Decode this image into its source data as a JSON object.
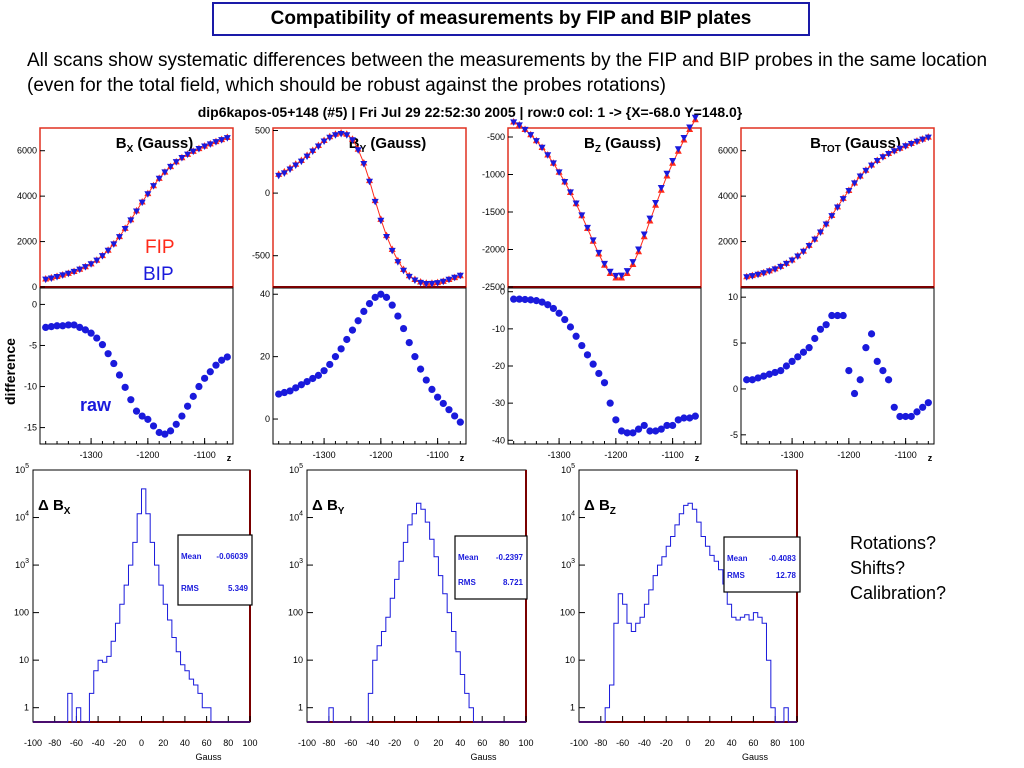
{
  "slide": {
    "title": "Compatibility of measurements by FIP and BIP plates",
    "intro": "All scans show systematic differences between the measurements by the FIP and BIP probes in the same location (even for the total field, which should be robust against the probes rotations)",
    "plot_header": "dip6kapos-05+148 (#5) | Fri Jul 29 22:52:30 2005 | row:0 col: 1 -> {X=-68.0 Y=148.0}",
    "questions": [
      "Rotations?",
      "Shifts?",
      "Calibration?"
    ]
  },
  "colors": {
    "fip": "#ff2a1a",
    "bip": "#1a1adc",
    "frame": "#7a0000",
    "title_border": "#1a1aa8",
    "hist": "#1a1adc"
  },
  "chart_data": [
    {
      "type": "line",
      "id": "bx",
      "title": "B",
      "title_sub": "X",
      "title_suffix": " (Gauss)",
      "x": [
        -1380,
        -1370,
        -1360,
        -1350,
        -1340,
        -1330,
        -1320,
        -1310,
        -1300,
        -1290,
        -1280,
        -1270,
        -1260,
        -1250,
        -1240,
        -1230,
        -1220,
        -1210,
        -1200,
        -1190,
        -1180,
        -1170,
        -1160,
        -1150,
        -1140,
        -1130,
        -1120,
        -1110,
        -1100,
        -1090,
        -1080,
        -1070,
        -1060
      ],
      "series": [
        {
          "name": "FIP",
          "values": [
            350,
            400,
            460,
            530,
            600,
            680,
            780,
            890,
            1020,
            1180,
            1380,
            1620,
            1900,
            2220,
            2580,
            2960,
            3350,
            3740,
            4110,
            4460,
            4780,
            5060,
            5300,
            5510,
            5690,
            5840,
            5970,
            6090,
            6200,
            6300,
            6400,
            6490,
            6580
          ]
        },
        {
          "name": "BIP",
          "values": [
            347,
            398,
            462,
            533,
            605,
            686,
            787,
            896,
            1024,
            1182,
            1379,
            1619,
            1898,
            2217,
            2576,
            2955,
            3345,
            3736,
            4108,
            4461,
            4786,
            5068,
            5310,
            5521,
            5703,
            5852,
            5980,
            6098,
            6205,
            6302,
            6400,
            6489,
            6576
          ]
        }
      ],
      "diff": [
        -2.8,
        -2.7,
        -2.6,
        -2.6,
        -2.5,
        -2.5,
        -2.8,
        -3.1,
        -3.5,
        -4.1,
        -4.9,
        -6.0,
        -7.2,
        -8.6,
        -10.1,
        -11.6,
        -13.0,
        -13.6,
        -14.0,
        -14.8,
        -15.6,
        -15.8,
        -15.4,
        -14.6,
        -13.6,
        -12.4,
        -11.2,
        -10.0,
        -9.0,
        -8.2,
        -7.4,
        -6.8,
        -6.4
      ],
      "ylim": [
        0,
        7000
      ],
      "yticks": [
        0,
        2000,
        4000,
        6000
      ],
      "dylim": [
        -17,
        2
      ],
      "dyticks": [
        -15,
        -10,
        -5,
        0
      ]
    },
    {
      "type": "line",
      "id": "by",
      "title": "B",
      "title_sub": "Y",
      "title_suffix": " (Gauss)",
      "x": [
        -1380,
        -1370,
        -1360,
        -1350,
        -1340,
        -1330,
        -1320,
        -1310,
        -1300,
        -1290,
        -1280,
        -1270,
        -1260,
        -1250,
        -1240,
        -1230,
        -1220,
        -1210,
        -1200,
        -1190,
        -1180,
        -1170,
        -1160,
        -1150,
        -1140,
        -1130,
        -1120,
        -1110,
        -1100,
        -1090,
        -1080,
        -1070,
        -1060
      ],
      "series": [
        {
          "name": "FIP",
          "values": [
            150,
            170,
            200,
            230,
            260,
            300,
            340,
            380,
            420,
            450,
            470,
            480,
            470,
            430,
            350,
            240,
            100,
            -60,
            -210,
            -340,
            -450,
            -540,
            -610,
            -660,
            -690,
            -710,
            -720,
            -720,
            -715,
            -705,
            -690,
            -675,
            -660
          ]
        },
        {
          "name": "BIP",
          "values": [
            142,
            162,
            193,
            224,
            255,
            295,
            336,
            376,
            416,
            446,
            466,
            476,
            466,
            426,
            346,
            236,
            95,
            -66,
            -217,
            -347,
            -457,
            -547,
            -616,
            -665,
            -694,
            -713,
            -722,
            -721,
            -715,
            -704,
            -688,
            -672,
            -656
          ]
        }
      ],
      "diff": [
        8.0,
        8.5,
        9.0,
        10.0,
        11.0,
        12.0,
        13.0,
        14.0,
        15.5,
        17.5,
        20.0,
        22.5,
        25.5,
        28.5,
        31.5,
        34.5,
        37.0,
        39.0,
        40.0,
        39.0,
        36.5,
        33.0,
        29.0,
        24.5,
        20.0,
        16.0,
        12.5,
        9.5,
        7.0,
        5.0,
        3.0,
        1.0,
        -1.0
      ],
      "ylim": [
        -750,
        520
      ],
      "yticks": [
        -500,
        0,
        500
      ],
      "dylim": [
        -8,
        42
      ],
      "dyticks": [
        0,
        20,
        40
      ]
    },
    {
      "type": "line",
      "id": "bz",
      "title": "B",
      "title_sub": "Z",
      "title_suffix": " (Gauss)",
      "x": [
        -1380,
        -1370,
        -1360,
        -1350,
        -1340,
        -1330,
        -1320,
        -1310,
        -1300,
        -1290,
        -1280,
        -1270,
        -1260,
        -1250,
        -1240,
        -1230,
        -1220,
        -1210,
        -1200,
        -1190,
        -1180,
        -1170,
        -1160,
        -1150,
        -1140,
        -1130,
        -1120,
        -1110,
        -1100,
        -1090,
        -1080,
        -1070,
        -1060
      ],
      "series": [
        {
          "name": "FIP",
          "values": [
            -300,
            -340,
            -400,
            -470,
            -550,
            -640,
            -740,
            -850,
            -970,
            -1100,
            -1240,
            -1390,
            -1550,
            -1720,
            -1890,
            -2060,
            -2210,
            -2320,
            -2380,
            -2380,
            -2320,
            -2200,
            -2030,
            -1830,
            -1620,
            -1410,
            -1210,
            -1020,
            -850,
            -690,
            -540,
            -400,
            -270
          ]
        },
        {
          "name": "BIP",
          "values": [
            -298,
            -338,
            -398,
            -468,
            -548,
            -637,
            -736,
            -845,
            -965,
            -1094,
            -1232,
            -1380,
            -1538,
            -1705,
            -1872,
            -2038,
            -2185,
            -2290,
            -2345,
            -2342,
            -2282,
            -2162,
            -1993,
            -1794,
            -1582,
            -1373,
            -1173,
            -984,
            -814,
            -656,
            -506,
            -366,
            -237
          ]
        }
      ],
      "diff": [
        -2.0,
        -2.0,
        -2.1,
        -2.2,
        -2.4,
        -2.8,
        -3.5,
        -4.5,
        -5.8,
        -7.5,
        -9.5,
        -12.0,
        -14.5,
        -17.0,
        -19.5,
        -22.0,
        -24.5,
        -30.0,
        -34.5,
        -37.5,
        -38.0,
        -38.0,
        -37.0,
        -36.0,
        -37.5,
        -37.5,
        -37.0,
        -36.0,
        -36.0,
        -34.5,
        -34.0,
        -34.0,
        -33.5
      ],
      "ylim": [
        -2500,
        -380
      ],
      "yticks": [
        -2500,
        -2000,
        -1500,
        -1000,
        -500
      ],
      "dylim": [
        -41,
        1
      ],
      "dyticks": [
        -40,
        -30,
        -20,
        -10,
        0
      ]
    },
    {
      "type": "line",
      "id": "btot",
      "title": "B",
      "title_sub": "TOT",
      "title_suffix": " (Gauss)",
      "x": [
        -1380,
        -1370,
        -1360,
        -1350,
        -1340,
        -1330,
        -1320,
        -1310,
        -1300,
        -1290,
        -1280,
        -1270,
        -1260,
        -1250,
        -1240,
        -1230,
        -1220,
        -1210,
        -1200,
        -1190,
        -1180,
        -1170,
        -1160,
        -1150,
        -1140,
        -1130,
        -1120,
        -1110,
        -1100,
        -1090,
        -1080,
        -1070,
        -1060
      ],
      "series": [
        {
          "name": "FIP",
          "values": [
            450,
            500,
            560,
            630,
            710,
            800,
            910,
            1040,
            1190,
            1370,
            1580,
            1830,
            2110,
            2430,
            2780,
            3150,
            3530,
            3900,
            4250,
            4580,
            4880,
            5140,
            5370,
            5570,
            5740,
            5880,
            6000,
            6110,
            6220,
            6320,
            6420,
            6510,
            6600
          ]
        },
        {
          "name": "BIP",
          "values": [
            449,
            499,
            559,
            629,
            709,
            799,
            908,
            1038,
            1188,
            1367,
            1576,
            1826,
            2105,
            2424,
            2773,
            3142,
            3522,
            3892,
            4248,
            4585,
            4886,
            5136,
            5364,
            5567,
            5737,
            5877,
            5997,
            6108,
            6218,
            6318,
            6418,
            6508,
            6598
          ]
        }
      ],
      "diff": [
        1.0,
        1.0,
        1.2,
        1.4,
        1.6,
        1.8,
        2.0,
        2.5,
        3.0,
        3.5,
        4.0,
        4.5,
        5.5,
        6.5,
        7.0,
        8.0,
        8.0,
        8.0,
        2.0,
        -0.5,
        1.0,
        4.5,
        6.0,
        3.0,
        2.0,
        1.0,
        -2.0,
        -3.0,
        -3.0,
        -3.0,
        -2.5,
        -2.0,
        -1.5
      ],
      "ylim": [
        0,
        7000
      ],
      "yticks": [
        2000,
        4000,
        6000
      ],
      "dylim": [
        -6,
        11
      ],
      "dyticks": [
        -5,
        0,
        5,
        10
      ]
    },
    {
      "type": "bar",
      "id": "hx",
      "label": "Δ B",
      "label_sub": "X",
      "xlabel": "Gauss",
      "log_y": true,
      "mean_label": "Mean",
      "mean": "-0.06039",
      "rms_label": "RMS",
      "rms": "5.349",
      "xlim": [
        -100,
        100
      ],
      "xticks": [
        -100,
        -80,
        -60,
        -40,
        -20,
        0,
        20,
        40,
        60,
        80,
        100
      ],
      "ylim": [
        0.5,
        100000
      ],
      "yticks": [
        1,
        10,
        100,
        1000,
        10000,
        100000
      ],
      "bin_edges": [
        -100,
        -96,
        -92,
        -88,
        -84,
        -80,
        -76,
        -72,
        -68,
        -64,
        -60,
        -56,
        -52,
        -48,
        -44,
        -40,
        -36,
        -32,
        -28,
        -24,
        -20,
        -16,
        -12,
        -8,
        -4,
        0,
        4,
        8,
        12,
        16,
        20,
        24,
        28,
        32,
        36,
        40,
        44,
        48,
        52,
        56,
        60,
        64,
        68,
        72,
        76,
        80,
        84,
        88,
        92,
        96,
        100
      ],
      "counts": [
        0,
        0,
        0,
        0,
        0,
        0,
        0,
        0,
        2,
        0,
        1,
        0,
        0,
        2,
        6,
        10,
        9,
        12,
        25,
        60,
        150,
        380,
        1000,
        3000,
        12000,
        40000,
        12000,
        3000,
        1000,
        380,
        150,
        70,
        30,
        15,
        8,
        6,
        4,
        3,
        2,
        1,
        1,
        0,
        0,
        0,
        0,
        0,
        0,
        0,
        0,
        0
      ]
    },
    {
      "type": "bar",
      "id": "hy",
      "label": "Δ B",
      "label_sub": "Y",
      "xlabel": "Gauss",
      "log_y": true,
      "mean_label": "Mean",
      "mean": "-0.2397",
      "rms_label": "RMS",
      "rms": "8.721",
      "xlim": [
        -100,
        100
      ],
      "xticks": [
        -100,
        -80,
        -60,
        -40,
        -20,
        0,
        20,
        40,
        60,
        80,
        100
      ],
      "ylim": [
        0.5,
        100000
      ],
      "yticks": [
        1,
        10,
        100,
        1000,
        10000,
        100000
      ],
      "bin_edges": [
        -100,
        -96,
        -92,
        -88,
        -84,
        -80,
        -76,
        -72,
        -68,
        -64,
        -60,
        -56,
        -52,
        -48,
        -44,
        -40,
        -36,
        -32,
        -28,
        -24,
        -20,
        -16,
        -12,
        -8,
        -4,
        0,
        4,
        8,
        12,
        16,
        20,
        24,
        28,
        32,
        36,
        40,
        44,
        48,
        52,
        56,
        60,
        64,
        68,
        72,
        76,
        80,
        84,
        88,
        92,
        96,
        100
      ],
      "counts": [
        0,
        0,
        0,
        0,
        0,
        1,
        0,
        0,
        0,
        0,
        0,
        0,
        0,
        0,
        2,
        10,
        20,
        40,
        80,
        200,
        500,
        1200,
        3000,
        7000,
        12000,
        20000,
        15000,
        8000,
        3500,
        1500,
        600,
        250,
        100,
        40,
        15,
        5,
        2,
        1,
        0,
        0,
        0,
        0,
        0,
        0,
        0,
        0,
        0,
        0,
        0,
        0
      ]
    },
    {
      "type": "bar",
      "id": "hz",
      "label": "Δ B",
      "label_sub": "Z",
      "xlabel": "Gauss",
      "log_y": true,
      "mean_label": "Mean",
      "mean": "-0.4083",
      "rms_label": "RMS",
      "rms": "12.78",
      "xlim": [
        -100,
        100
      ],
      "xticks": [
        -100,
        -80,
        -60,
        -40,
        -20,
        0,
        20,
        40,
        60,
        80,
        100
      ],
      "ylim": [
        0.5,
        100000
      ],
      "yticks": [
        1,
        10,
        100,
        1000,
        10000,
        100000
      ],
      "bin_edges": [
        -100,
        -96,
        -92,
        -88,
        -84,
        -80,
        -76,
        -72,
        -68,
        -64,
        -60,
        -56,
        -52,
        -48,
        -44,
        -40,
        -36,
        -32,
        -28,
        -24,
        -20,
        -16,
        -12,
        -8,
        -4,
        0,
        4,
        8,
        12,
        16,
        20,
        24,
        28,
        32,
        36,
        40,
        44,
        48,
        52,
        56,
        60,
        64,
        68,
        72,
        76,
        80,
        84,
        88,
        92,
        96,
        100
      ],
      "counts": [
        0,
        0,
        0,
        0,
        0,
        0,
        1,
        3,
        60,
        250,
        150,
        60,
        40,
        60,
        80,
        150,
        300,
        600,
        1000,
        1500,
        2500,
        4000,
        7000,
        12000,
        18000,
        20000,
        15000,
        8000,
        4000,
        2500,
        1600,
        1200,
        800,
        400,
        150,
        80,
        70,
        80,
        90,
        70,
        100,
        80,
        60,
        10,
        1,
        0,
        0,
        1,
        0,
        0
      ]
    }
  ],
  "annotations": {
    "fip_label": "FIP",
    "bip_label": "BIP",
    "difference_label": "difference",
    "raw_label": "raw",
    "z_label": "z",
    "scan_xticks": [
      -1300,
      -1200,
      -1100
    ]
  }
}
